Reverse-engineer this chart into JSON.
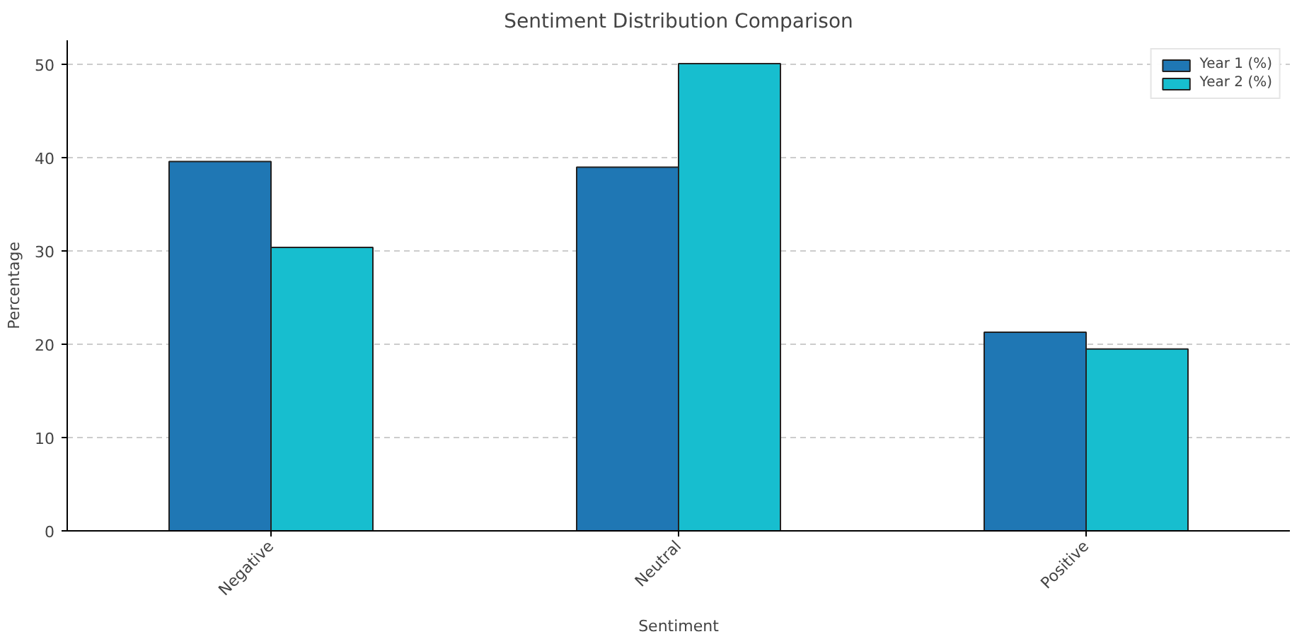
{
  "chart_data": {
    "type": "bar",
    "title": "Sentiment Distribution Comparison",
    "xlabel": "Sentiment",
    "ylabel": "Percentage",
    "categories": [
      "Negative",
      "Neutral",
      "Positive"
    ],
    "series": [
      {
        "name": "Year 1 (%)",
        "color": "#1f77b4",
        "values": [
          39.6,
          39.0,
          21.3
        ]
      },
      {
        "name": "Year 2 (%)",
        "color": "#17becf",
        "values": [
          30.4,
          50.1,
          19.5
        ]
      }
    ],
    "ylim": [
      0,
      52.6
    ],
    "yticks": [
      0,
      10,
      20,
      30,
      40,
      50
    ],
    "grid": "y",
    "legend": "top right"
  }
}
